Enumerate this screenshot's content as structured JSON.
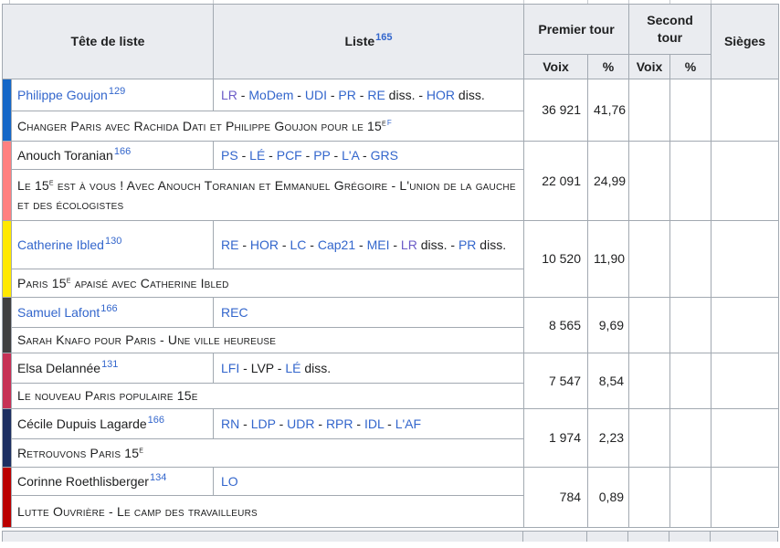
{
  "table": {
    "headers": {
      "tete_de_liste": "Tête de liste",
      "liste": "Liste",
      "liste_ref": "165",
      "premier_tour": "Premier tour",
      "second_tour": "Second tour",
      "sieges": "Sièges",
      "voix": "Voix",
      "pct": "%"
    },
    "link_colors": {
      "link": "#3366CC",
      "visited": "#6B5BC7",
      "text": "#202122"
    },
    "candidates": [
      {
        "name": "Philippe Goujon",
        "name_is_link": true,
        "ref": "129",
        "bar_color": "#1467C8",
        "parties": [
          {
            "t": "LR",
            "c": "visited"
          },
          {
            "t": "MoDem",
            "c": "link"
          },
          {
            "t": "UDI",
            "c": "link"
          },
          {
            "t": "PR",
            "c": "link"
          },
          {
            "t": "RE",
            "c": "link",
            "s": " diss."
          },
          {
            "t": "HOR",
            "c": "link",
            "s": " diss."
          }
        ],
        "slogan": {
          "before": "Changer Paris avec Rachida Dati et Philippe Goujon pour le 15",
          "sup": "e",
          "after": "",
          "ref": "f"
        },
        "voix1": "36 921",
        "pct1": "41,76",
        "voix2": "",
        "pct2": "",
        "sieges": ""
      },
      {
        "name": "Anouch Toranian",
        "name_is_link": false,
        "ref": "166",
        "bar_color": "#FF8080",
        "parties": [
          {
            "t": "PS",
            "c": "link"
          },
          {
            "t": "LÉ",
            "c": "link"
          },
          {
            "t": "PCF",
            "c": "link"
          },
          {
            "t": "PP",
            "c": "link"
          },
          {
            "t": "L'A",
            "c": "link"
          },
          {
            "t": "GRS",
            "c": "link"
          }
        ],
        "slogan": {
          "before": "Le 15",
          "sup": "e",
          "after": " est à vous ! Avec Anouch Toranian et Emmanuel Grégoire - L'union de la gauche et des écologistes",
          "ref": ""
        },
        "voix1": "22 091",
        "pct1": "24,99",
        "voix2": "",
        "pct2": "",
        "sieges": ""
      },
      {
        "name": "Catherine Ibled",
        "name_is_link": true,
        "ref": "130",
        "bar_color": "#FFE900",
        "parties": [
          {
            "t": "RE",
            "c": "link"
          },
          {
            "t": "HOR",
            "c": "link"
          },
          {
            "t": "LC",
            "c": "link"
          },
          {
            "t": "Cap21",
            "c": "link"
          },
          {
            "t": "MEI",
            "c": "link"
          },
          {
            "t": "LR",
            "c": "visited",
            "s": " diss."
          },
          {
            "t": "PR",
            "c": "link",
            "s": " diss."
          }
        ],
        "slogan": {
          "before": "Paris 15",
          "sup": "e",
          "after": " apaisé avec Catherine Ibled",
          "ref": ""
        },
        "voix1": "10 520",
        "pct1": "11,90",
        "voix2": "",
        "pct2": "",
        "sieges": ""
      },
      {
        "name": "Samuel Lafont",
        "name_is_link": true,
        "ref": "166",
        "bar_color": "#404040",
        "parties": [
          {
            "t": "REC",
            "c": "link"
          }
        ],
        "slogan": {
          "before": "Sarah Knafo pour Paris - Une ville heureuse",
          "sup": "",
          "after": "",
          "ref": ""
        },
        "voix1": "8 565",
        "pct1": "9,69",
        "voix2": "",
        "pct2": "",
        "sieges": ""
      },
      {
        "name": "Elsa Delannée",
        "name_is_link": false,
        "ref": "131",
        "bar_color": "#C73155",
        "parties": [
          {
            "t": "LFI",
            "c": "link"
          },
          {
            "t": "LVP",
            "c": "plain"
          },
          {
            "t": "LÉ",
            "c": "link",
            "s": " diss."
          }
        ],
        "slogan": {
          "before": "Le nouveau Paris populaire 15e",
          "sup": "",
          "after": "",
          "ref": ""
        },
        "voix1": "7 547",
        "pct1": "8,54",
        "voix2": "",
        "pct2": "",
        "sieges": ""
      },
      {
        "name": "Cécile Dupuis Lagarde",
        "name_is_link": false,
        "ref": "166",
        "bar_color": "#1C2E62",
        "parties": [
          {
            "t": "RN",
            "c": "link"
          },
          {
            "t": "LDP",
            "c": "link"
          },
          {
            "t": "UDR",
            "c": "link"
          },
          {
            "t": "RPR",
            "c": "link"
          },
          {
            "t": "IDL",
            "c": "link"
          },
          {
            "t": "L'AF",
            "c": "link"
          }
        ],
        "slogan": {
          "before": "Retrouvons Paris 15",
          "sup": "e",
          "after": "",
          "ref": ""
        },
        "voix1": "1 974",
        "pct1": "2,23",
        "voix2": "",
        "pct2": "",
        "sieges": ""
      },
      {
        "name": "Corinne Roethlisberger",
        "name_is_link": false,
        "ref": "134",
        "bar_color": "#BB0000",
        "parties": [
          {
            "t": "LO",
            "c": "link"
          }
        ],
        "slogan": {
          "before": "Lutte Ouvrière - Le camp des travailleurs",
          "sup": "",
          "after": "",
          "ref": ""
        },
        "voix1": "784",
        "pct1": "0,89",
        "voix2": "",
        "pct2": "",
        "sieges": ""
      }
    ]
  }
}
